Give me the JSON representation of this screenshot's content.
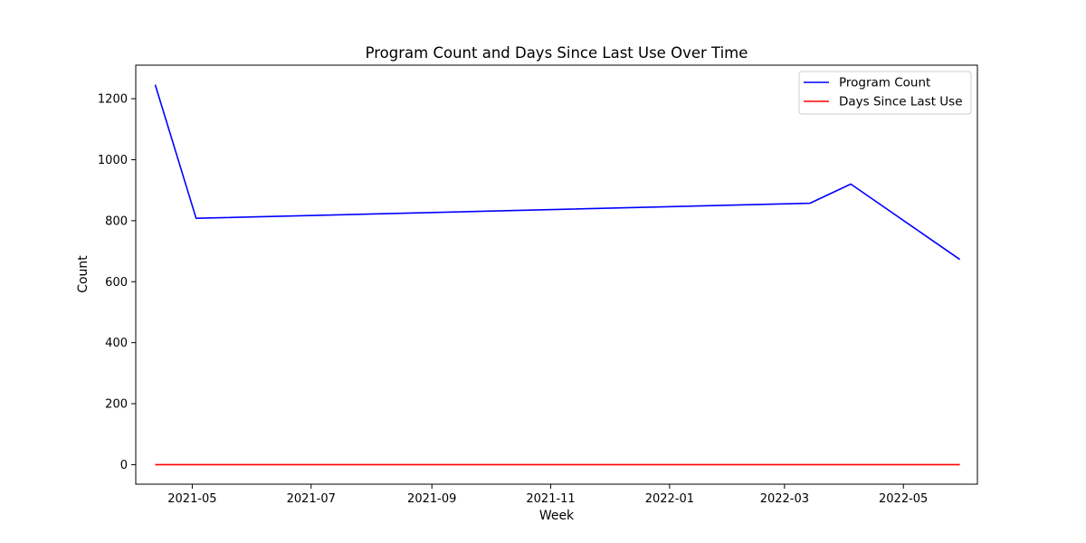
{
  "chart_data": {
    "type": "line",
    "title": "Program Count and Days Since Last Use Over Time",
    "xlabel": "Week",
    "ylabel": "Count",
    "x": [
      "2021-04-12",
      "2021-05-03",
      "2022-03-14",
      "2022-04-04",
      "2022-05-30"
    ],
    "series": [
      {
        "name": "Program Count",
        "color": "#0000ff",
        "values": [
          1246,
          808,
          857,
          920,
          673
        ]
      },
      {
        "name": "Days Since Last Use",
        "color": "#ff0000",
        "values": [
          0,
          0,
          0,
          0,
          0
        ]
      }
    ],
    "xlim": [
      "2021-04-02",
      "2022-06-08"
    ],
    "ylim": [
      -64,
      1310
    ],
    "x_ticks": [
      "2021-05",
      "2021-07",
      "2021-09",
      "2021-11",
      "2022-01",
      "2022-03",
      "2022-05"
    ],
    "y_ticks": [
      0,
      200,
      400,
      600,
      800,
      1000,
      1200
    ],
    "grid": false,
    "legend_position": "top-right"
  }
}
